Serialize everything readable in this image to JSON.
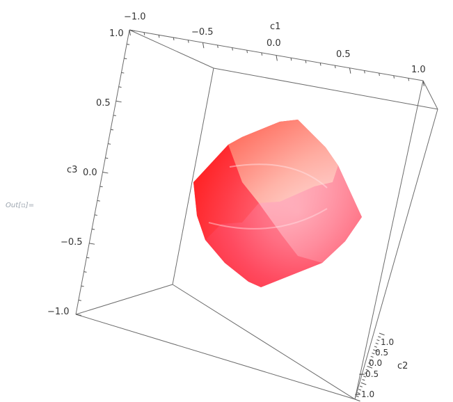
{
  "out_prompt": "Out[▫]=",
  "chart_data": {
    "type": "surface3d",
    "title": "",
    "object": "rounded cube-like region",
    "colors": {
      "box": "#6b6b6b",
      "tick": "#555555",
      "surface_dark": "#ff1a1a",
      "surface_mid": "#ff5a6a",
      "surface_light": "#ffc4cc"
    },
    "axes": {
      "c1": {
        "label": "c1",
        "range": [
          -1.0,
          1.0
        ],
        "ticks": [
          {
            "value": -1.0,
            "label": "−1.0"
          },
          {
            "value": -0.5,
            "label": "−0.5"
          },
          {
            "value": 0.0,
            "label": "0.0"
          },
          {
            "value": 0.5,
            "label": "0.5"
          },
          {
            "value": 1.0,
            "label": "1.0"
          }
        ]
      },
      "c2": {
        "label": "c2",
        "range": [
          -1.0,
          1.0
        ],
        "ticks": [
          {
            "value": -1.0,
            "label": "−1.0"
          },
          {
            "value": -0.5,
            "label": "−0.5"
          },
          {
            "value": 0.0,
            "label": "0.0"
          },
          {
            "value": 0.5,
            "label": "0.5"
          },
          {
            "value": 1.0,
            "label": "1.0"
          }
        ]
      },
      "c3": {
        "label": "c3",
        "range": [
          -1.0,
          1.0
        ],
        "ticks": [
          {
            "value": 1.0,
            "label": "1.0"
          },
          {
            "value": 0.5,
            "label": "0.5"
          },
          {
            "value": 0.0,
            "label": "0.0"
          },
          {
            "value": -0.5,
            "label": "−0.5"
          },
          {
            "value": -1.0,
            "label": "−1.0"
          }
        ]
      }
    }
  }
}
